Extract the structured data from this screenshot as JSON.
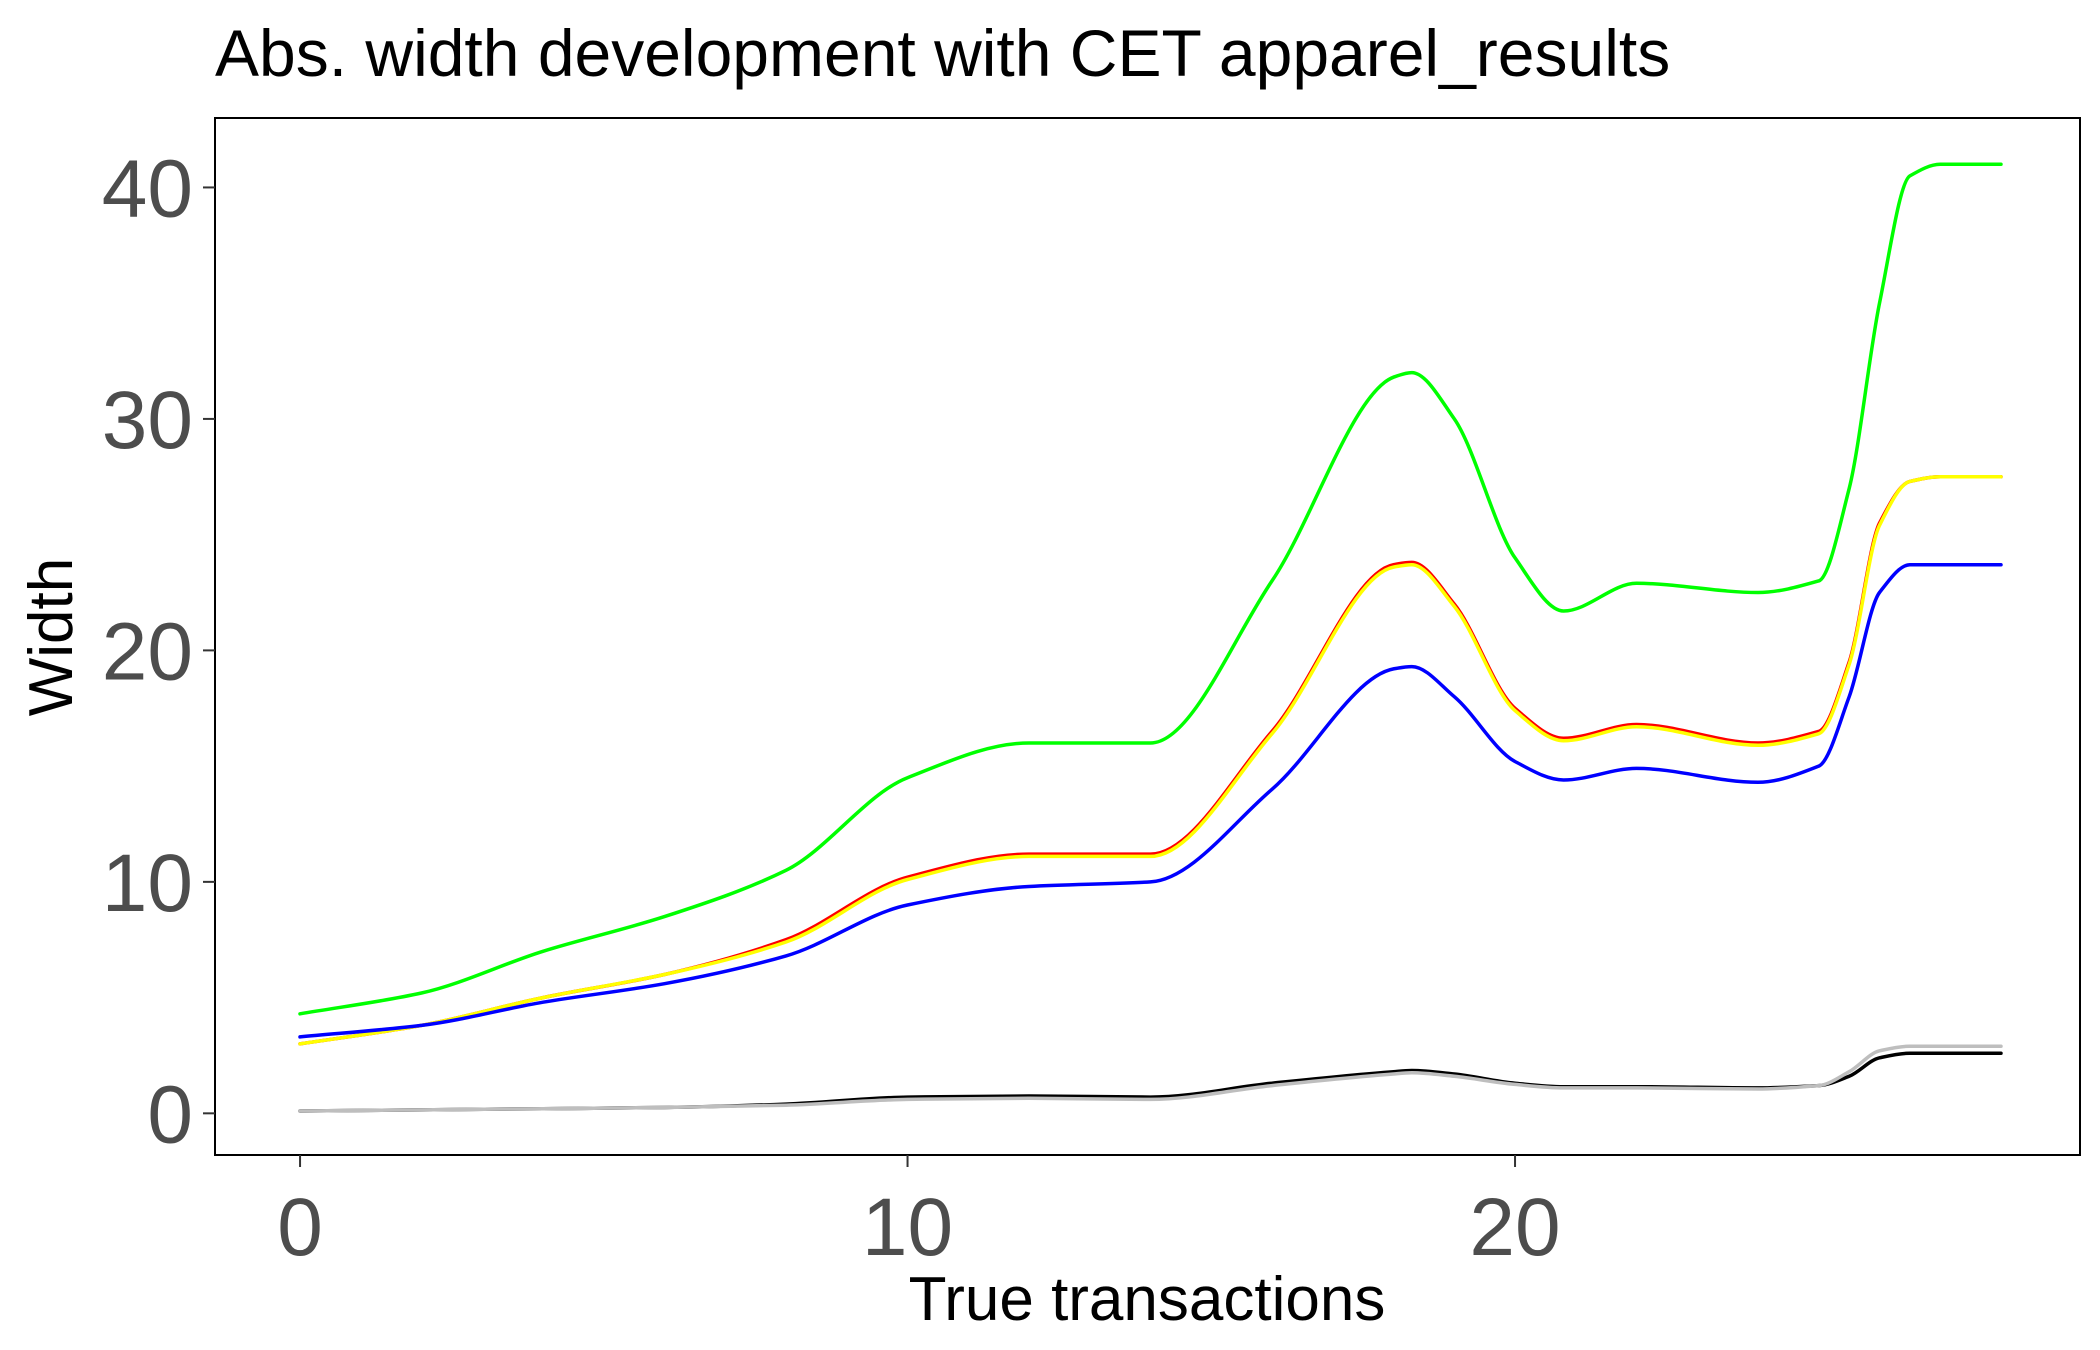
{
  "chart_data": {
    "type": "line",
    "title": "Abs. width development with CET apparel_results",
    "xlabel": "True transactions",
    "ylabel": "Width",
    "xlim": [
      -1.4,
      29.3
    ],
    "ylim": [
      -1.8,
      43.0
    ],
    "xticks": [
      0,
      10,
      20
    ],
    "yticks": [
      0,
      10,
      20,
      30,
      40
    ],
    "grid": false,
    "legend": "none",
    "x": [
      0,
      2,
      4,
      6,
      8,
      10,
      12,
      14,
      16,
      18,
      18.3,
      19,
      20,
      20.8,
      22,
      24,
      25,
      25.5,
      26,
      26.5,
      27,
      28
    ],
    "series": [
      {
        "color": "#00ff00",
        "values": [
          4.3,
          5.2,
          7.0,
          8.5,
          10.5,
          14.5,
          16.0,
          16.0,
          23.0,
          31.8,
          32.0,
          30.0,
          24.0,
          21.7,
          22.9,
          22.5,
          23.0,
          27.0,
          35.0,
          40.5,
          41.0,
          41.0
        ]
      },
      {
        "color": "#ff0000",
        "values": [
          3.0,
          3.8,
          5.0,
          6.0,
          7.5,
          10.2,
          11.2,
          11.2,
          16.5,
          23.7,
          23.8,
          22.0,
          17.5,
          16.2,
          16.8,
          16.0,
          16.5,
          19.5,
          25.5,
          27.3,
          27.5,
          27.5
        ]
      },
      {
        "color": "#ffff00",
        "values": [
          3.0,
          3.8,
          5.0,
          6.0,
          7.4,
          10.1,
          11.1,
          11.1,
          16.4,
          23.6,
          23.7,
          21.9,
          17.4,
          16.1,
          16.7,
          15.9,
          16.4,
          19.4,
          25.4,
          27.3,
          27.5,
          27.5
        ]
      },
      {
        "color": "#0000ff",
        "values": [
          3.3,
          3.8,
          4.8,
          5.6,
          6.8,
          9.0,
          9.8,
          10.0,
          14.0,
          19.2,
          19.3,
          18.0,
          15.2,
          14.4,
          14.9,
          14.3,
          15.0,
          18.0,
          22.5,
          23.7,
          23.7,
          23.7
        ]
      },
      {
        "color": "#000000",
        "values": [
          0.1,
          0.15,
          0.2,
          0.25,
          0.4,
          0.7,
          0.75,
          0.7,
          1.3,
          1.8,
          1.85,
          1.7,
          1.3,
          1.15,
          1.15,
          1.1,
          1.2,
          1.6,
          2.4,
          2.6,
          2.6,
          2.6
        ]
      },
      {
        "color": "#bebebe",
        "values": [
          0.1,
          0.15,
          0.2,
          0.25,
          0.35,
          0.6,
          0.65,
          0.6,
          1.2,
          1.7,
          1.75,
          1.6,
          1.25,
          1.1,
          1.1,
          1.05,
          1.2,
          1.8,
          2.7,
          2.9,
          2.9,
          2.9
        ]
      }
    ]
  }
}
